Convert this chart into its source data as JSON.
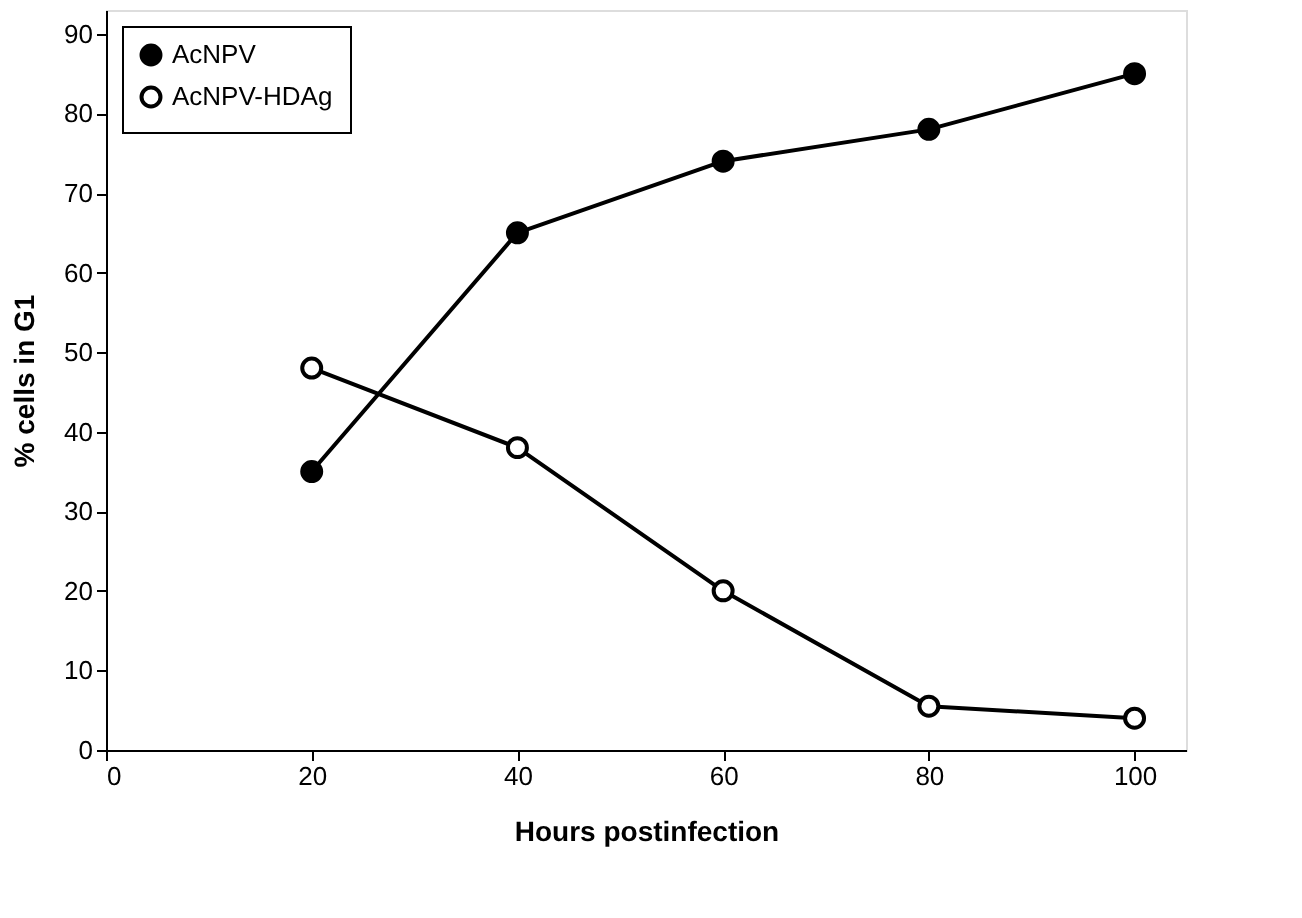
{
  "chart_data": {
    "type": "line",
    "xlabel": "Hours   postinfection",
    "ylabel": "% cells  in  G1",
    "x": [
      20,
      40,
      60,
      80,
      100
    ],
    "series": [
      {
        "name": "AcNPV",
        "color": "#000000",
        "values": [
          35,
          65,
          74,
          78,
          85
        ]
      },
      {
        "name": "AcNPV-HDAg",
        "color": "#000000",
        "values": [
          48,
          38,
          20,
          5.5,
          4
        ]
      }
    ],
    "xlim": [
      0,
      105
    ],
    "xticks": [
      0,
      20,
      40,
      60,
      80,
      100
    ],
    "ylim": [
      0,
      93
    ],
    "yticks": [
      0,
      10,
      20,
      30,
      40,
      50,
      60,
      70,
      80,
      90
    ],
    "grid": false,
    "legend": "top left",
    "marker": "circle",
    "line_style": "solid"
  }
}
